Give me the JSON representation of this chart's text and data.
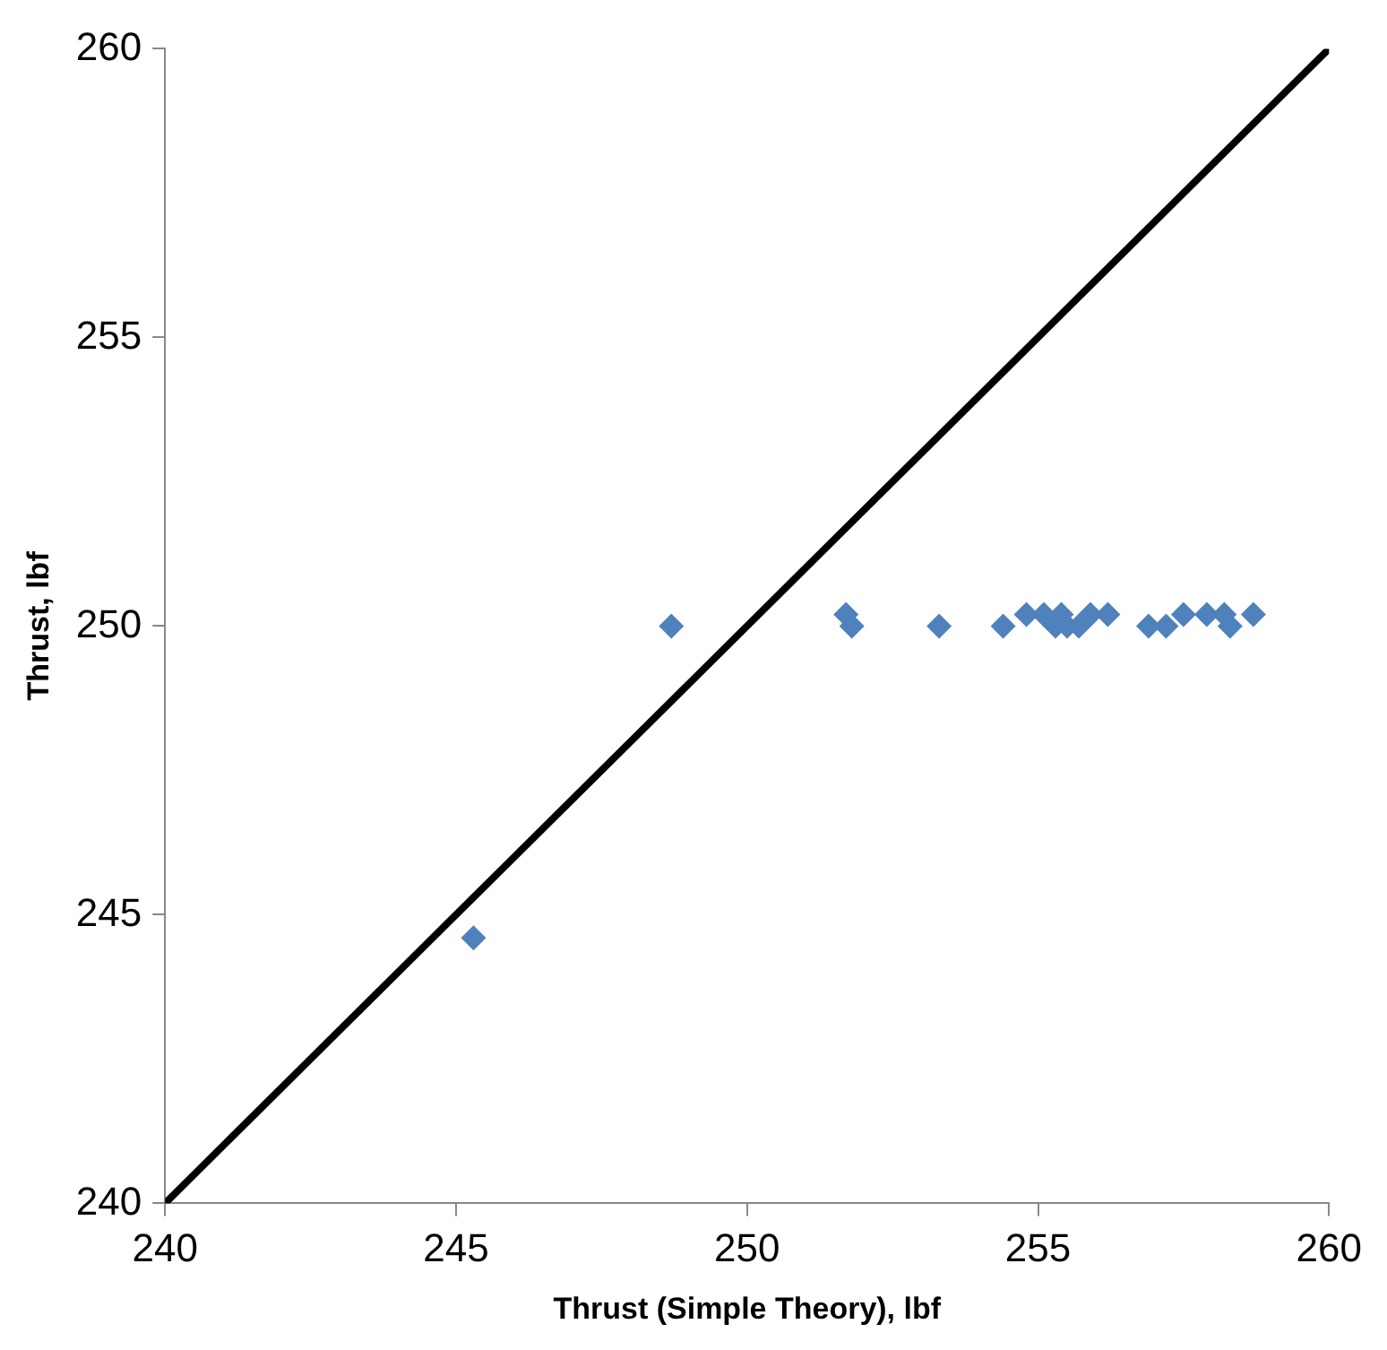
{
  "chart_data": {
    "type": "scatter",
    "xlabel": "Thrust (Simple Theory), lbf",
    "ylabel": "Thrust, lbf",
    "xlim": [
      240,
      260
    ],
    "xticks": [
      240,
      245,
      250,
      255,
      260
    ],
    "ylim": [
      240,
      260
    ],
    "yticks": [
      240,
      245,
      250,
      255,
      260
    ],
    "grid": false,
    "legend": false,
    "marker": "diamond",
    "series": [
      {
        "type": "scatter",
        "color": "#4f81bd",
        "x": [
          245.3,
          248.7,
          251.7,
          251.8,
          253.3,
          254.4,
          254.8,
          255.1,
          255.3,
          255.4,
          255.5,
          255.7,
          255.9,
          256.2,
          256.9,
          257.2,
          257.5,
          257.9,
          258.2,
          258.3,
          258.7
        ],
        "values": [
          244.6,
          250,
          250.2,
          250,
          250,
          250,
          250.2,
          250.2,
          250,
          250.2,
          250,
          250,
          250.2,
          250.2,
          250,
          250,
          250.2,
          250.2,
          250.2,
          250,
          250.2
        ]
      },
      {
        "type": "line",
        "color": "#000000",
        "line_style": "solid",
        "marker": "none",
        "x": [
          240,
          260
        ],
        "values": [
          240,
          260
        ]
      }
    ]
  }
}
